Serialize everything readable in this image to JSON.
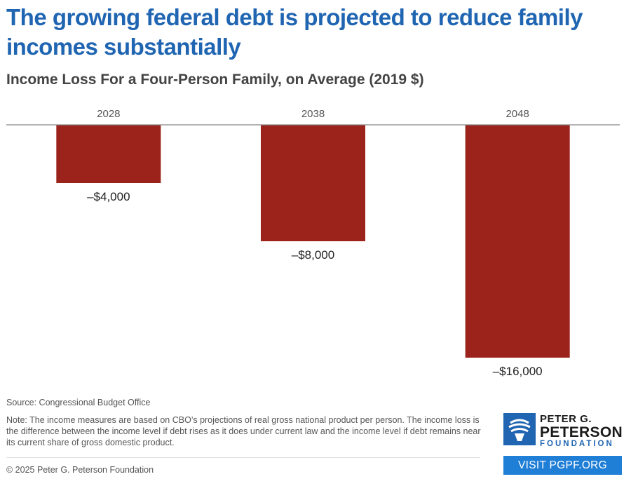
{
  "header": {
    "title": "The growing federal debt is projected to reduce family incomes substantially",
    "subtitle": "Income Loss For a Four-Person Family, on Average (2019 $)"
  },
  "chart_data": {
    "type": "bar",
    "orientation": "vertical",
    "categories": [
      "2028",
      "2038",
      "2048"
    ],
    "values": [
      -4000,
      -8000,
      -16000
    ],
    "data_labels": [
      "–$4,000",
      "–$8,000",
      "–$16,000"
    ],
    "ylim": [
      -16000,
      0
    ],
    "axis_position": "top",
    "grid": false,
    "colors": {
      "bar": "#9b231b",
      "axis": "#888888"
    }
  },
  "footer": {
    "source": "Source: Congressional Budget Office",
    "note": "Note: The income measures are based on CBO’s projections of real gross national product per person. The income loss is the difference between the income level if debt rises as it does under current law and the income level if debt remains near its current share of gross domestic product.",
    "copyright": "© 2025 Peter G. Peterson Foundation"
  },
  "branding": {
    "logo_icon": "torch-icon",
    "logo_line1": "PETER G.",
    "logo_line2": "PETERSON",
    "logo_line3": "FOUNDATION",
    "visit_label": "VISIT PGPF.ORG",
    "brand_color": "#1f65b2"
  }
}
